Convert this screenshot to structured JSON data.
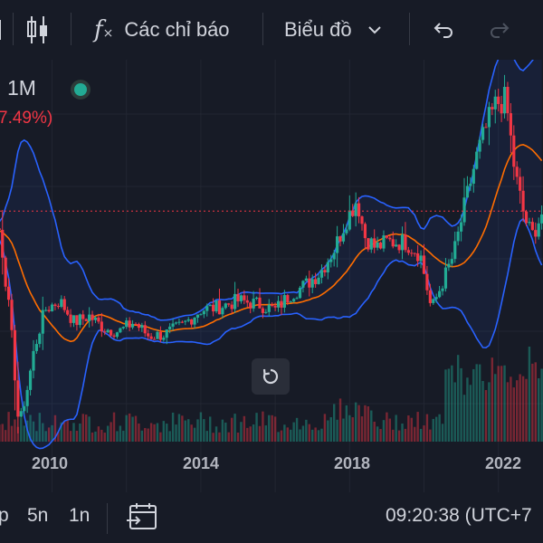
{
  "toolbar": {
    "indicators_label": "Các chỉ báo",
    "chart_label": "Biểu đồ"
  },
  "legend": {
    "interval": "1M",
    "change": "7.49%)"
  },
  "x_axis": {
    "labels": [
      "2010",
      "2014",
      "2018",
      "2022"
    ]
  },
  "bottom_bar": {
    "range_partial": "p",
    "range_5y": "5n",
    "range_1y": "1n",
    "clock": "09:20:38 (UTC+7"
  },
  "colors": {
    "up": "#22ab94",
    "down": "#f23645",
    "band": "#2962ff",
    "basis": "#ff6d00",
    "background": "#171b26"
  },
  "chart_data": {
    "type": "candlestick",
    "interval": "1M",
    "x_range": [
      2008.6,
      2023.2
    ],
    "y_range": [
      310,
      1570
    ],
    "bollinger_bands": true,
    "volume_pane": true,
    "price_line_dotted": true,
    "anchors": [
      [
        2008.6,
        1020
      ],
      [
        2008.9,
        700
      ],
      [
        2009.1,
        390
      ],
      [
        2009.3,
        480
      ],
      [
        2009.5,
        620
      ],
      [
        2009.8,
        760
      ],
      [
        2010.2,
        790
      ],
      [
        2010.6,
        720
      ],
      [
        2011.0,
        740
      ],
      [
        2011.4,
        700
      ],
      [
        2011.8,
        690
      ],
      [
        2012.2,
        720
      ],
      [
        2012.6,
        675
      ],
      [
        2013.0,
        680
      ],
      [
        2013.5,
        710
      ],
      [
        2014.0,
        760
      ],
      [
        2014.5,
        770
      ],
      [
        2015.0,
        790
      ],
      [
        2015.5,
        780
      ],
      [
        2016.0,
        760
      ],
      [
        2016.4,
        810
      ],
      [
        2016.8,
        840
      ],
      [
        2017.2,
        880
      ],
      [
        2017.6,
        960
      ],
      [
        2017.9,
        1050
      ],
      [
        2018.2,
        1120
      ],
      [
        2018.4,
        1000
      ],
      [
        2018.7,
        960
      ],
      [
        2019.0,
        980
      ],
      [
        2019.5,
        980
      ],
      [
        2019.9,
        940
      ],
      [
        2020.2,
        760
      ],
      [
        2020.5,
        850
      ],
      [
        2020.8,
        940
      ],
      [
        2021.1,
        1100
      ],
      [
        2021.4,
        1250
      ],
      [
        2021.7,
        1360
      ],
      [
        2021.95,
        1430
      ],
      [
        2022.2,
        1440
      ],
      [
        2022.45,
        1200
      ],
      [
        2022.7,
        1060
      ],
      [
        2022.9,
        1000
      ],
      [
        2023.2,
        1080
      ]
    ]
  }
}
